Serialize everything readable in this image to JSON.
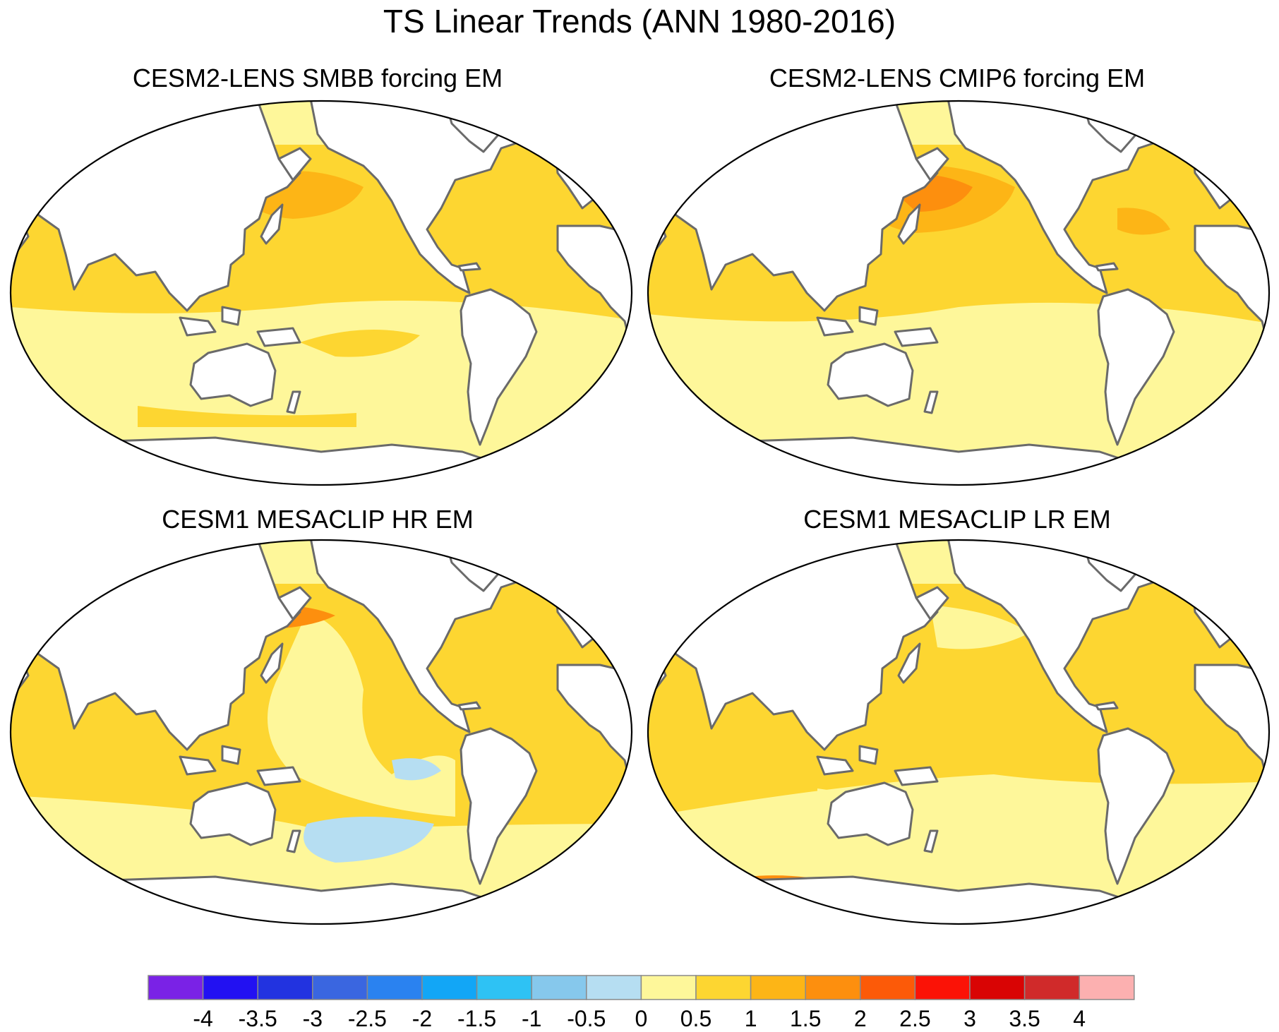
{
  "figure": {
    "title": "TS Linear Trends (ANN 1980-2016)"
  },
  "panels": [
    {
      "title": "CESM2-LENS SMBB forcing EM",
      "base_level": 1
    },
    {
      "title": "CESM2-LENS CMIP6 forcing EM",
      "base_level": 1
    },
    {
      "title": "CESM1 MESACLIP HR EM",
      "base_level": 1
    },
    {
      "title": "CESM1 MESACLIP LR EM",
      "base_level": 1
    }
  ],
  "colorbar": {
    "colors": [
      "#7a22e6",
      "#2211f2",
      "#2233e0",
      "#3a66e0",
      "#2a82f0",
      "#12a6f6",
      "#2ec2f4",
      "#86c8ec",
      "#b6def2",
      "#fef79a",
      "#fdd631",
      "#fdb516",
      "#fd8f0e",
      "#fc5a08",
      "#fb1206",
      "#d90404",
      "#d02a2a",
      "#fcb0b0"
    ],
    "labels": [
      "-4",
      "-3.5",
      "-3",
      "-2.5",
      "-2",
      "-1.5",
      "-1",
      "-0.5",
      "0",
      "0.5",
      "1",
      "1.5",
      "2",
      "2.5",
      "3",
      "3.5",
      "4"
    ]
  },
  "legend_levels": {
    "level_0_0p5": "#fef79a",
    "level_0p5_1": "#fdd631",
    "level_1_1p5": "#fdb516",
    "level_1p5_2": "#fd8f0e",
    "level_2_2p5": "#fc5a08",
    "level_m0p5_0": "#b6def2"
  }
}
